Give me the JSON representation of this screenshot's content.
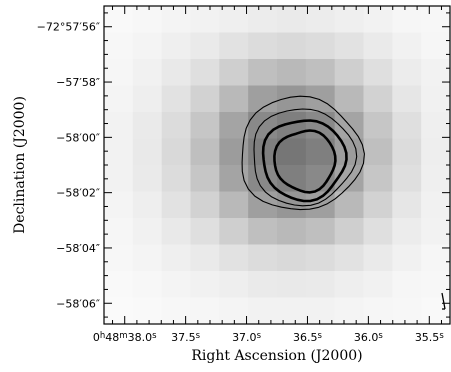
{
  "chart_data": {
    "type": "heatmap",
    "title": "",
    "xlabel": "Right Ascension (J2000)",
    "ylabel": "Declination (J2000)",
    "x_ticks": [
      {
        "value": 38.0,
        "parts": [
          "0",
          "h",
          "48",
          "m",
          "38.0",
          "s"
        ]
      },
      {
        "value": 37.5,
        "parts": [
          "37.5",
          "s"
        ]
      },
      {
        "value": 37.0,
        "parts": [
          "37.0",
          "s"
        ]
      },
      {
        "value": 36.5,
        "parts": [
          "36.5",
          "s"
        ]
      },
      {
        "value": 36.0,
        "parts": [
          "36.0",
          "s"
        ]
      },
      {
        "value": 35.5,
        "parts": [
          "35.5",
          "s"
        ]
      }
    ],
    "y_ticks": [
      {
        "value": 56,
        "label": "−72°57′56″"
      },
      {
        "value": 58,
        "label": "−57′58″"
      },
      {
        "value": 60,
        "label": "−58′00″"
      },
      {
        "value": 62,
        "label": "−58′02″"
      },
      {
        "value": 64,
        "label": "−58′04″"
      },
      {
        "value": 66,
        "label": "−58′06″"
      }
    ],
    "xlim_seconds": [
      38.17,
      35.33
    ],
    "ylim_offset_arcsec": [
      55.25,
      66.75
    ],
    "grid": false,
    "colormap": "grayscale (white = low, dark gray = high)",
    "pixel_grid": {
      "rows": 12,
      "cols": 12,
      "intensity": [
        [
          0.02,
          0.03,
          0.05,
          0.06,
          0.08,
          0.1,
          0.11,
          0.1,
          0.08,
          0.06,
          0.04,
          0.03
        ],
        [
          0.03,
          0.05,
          0.08,
          0.11,
          0.16,
          0.2,
          0.22,
          0.2,
          0.16,
          0.11,
          0.07,
          0.04
        ],
        [
          0.04,
          0.07,
          0.12,
          0.18,
          0.28,
          0.38,
          0.42,
          0.38,
          0.28,
          0.18,
          0.1,
          0.06
        ],
        [
          0.05,
          0.09,
          0.16,
          0.26,
          0.42,
          0.58,
          0.64,
          0.58,
          0.42,
          0.26,
          0.14,
          0.07
        ],
        [
          0.06,
          0.11,
          0.2,
          0.34,
          0.55,
          0.72,
          0.78,
          0.72,
          0.55,
          0.34,
          0.18,
          0.08
        ],
        [
          0.06,
          0.12,
          0.22,
          0.38,
          0.6,
          0.78,
          0.84,
          0.78,
          0.6,
          0.38,
          0.2,
          0.09
        ],
        [
          0.06,
          0.11,
          0.2,
          0.34,
          0.55,
          0.72,
          0.78,
          0.72,
          0.55,
          0.34,
          0.18,
          0.08
        ],
        [
          0.05,
          0.09,
          0.16,
          0.26,
          0.42,
          0.58,
          0.64,
          0.58,
          0.42,
          0.26,
          0.14,
          0.07
        ],
        [
          0.04,
          0.07,
          0.12,
          0.18,
          0.28,
          0.38,
          0.42,
          0.38,
          0.28,
          0.18,
          0.1,
          0.06
        ],
        [
          0.03,
          0.05,
          0.08,
          0.11,
          0.16,
          0.2,
          0.22,
          0.2,
          0.16,
          0.11,
          0.07,
          0.04
        ],
        [
          0.02,
          0.03,
          0.05,
          0.07,
          0.09,
          0.11,
          0.12,
          0.11,
          0.09,
          0.07,
          0.04,
          0.03
        ],
        [
          0.01,
          0.02,
          0.03,
          0.04,
          0.05,
          0.06,
          0.06,
          0.06,
          0.05,
          0.04,
          0.03,
          0.02
        ]
      ]
    },
    "contours": [
      {
        "level": 1,
        "center_ra_s": 36.56,
        "center_dec_offset": 60.6,
        "rx_s": 0.5,
        "ry_arcsec": 2.05,
        "style": "thin"
      },
      {
        "level": 2,
        "center_ra_s": 36.54,
        "center_dec_offset": 60.7,
        "rx_s": 0.42,
        "ry_arcsec": 1.75,
        "style": "thin"
      },
      {
        "level": 3,
        "center_ra_s": 36.53,
        "center_dec_offset": 60.8,
        "rx_s": 0.34,
        "ry_arcsec": 1.45,
        "style": "thick"
      },
      {
        "level": 4,
        "center_ra_s": 36.52,
        "center_dec_offset": 60.85,
        "rx_s": 0.25,
        "ry_arcsec": 1.1,
        "style": "thick"
      }
    ],
    "beam_marker": {
      "position": "bottom-right"
    }
  }
}
